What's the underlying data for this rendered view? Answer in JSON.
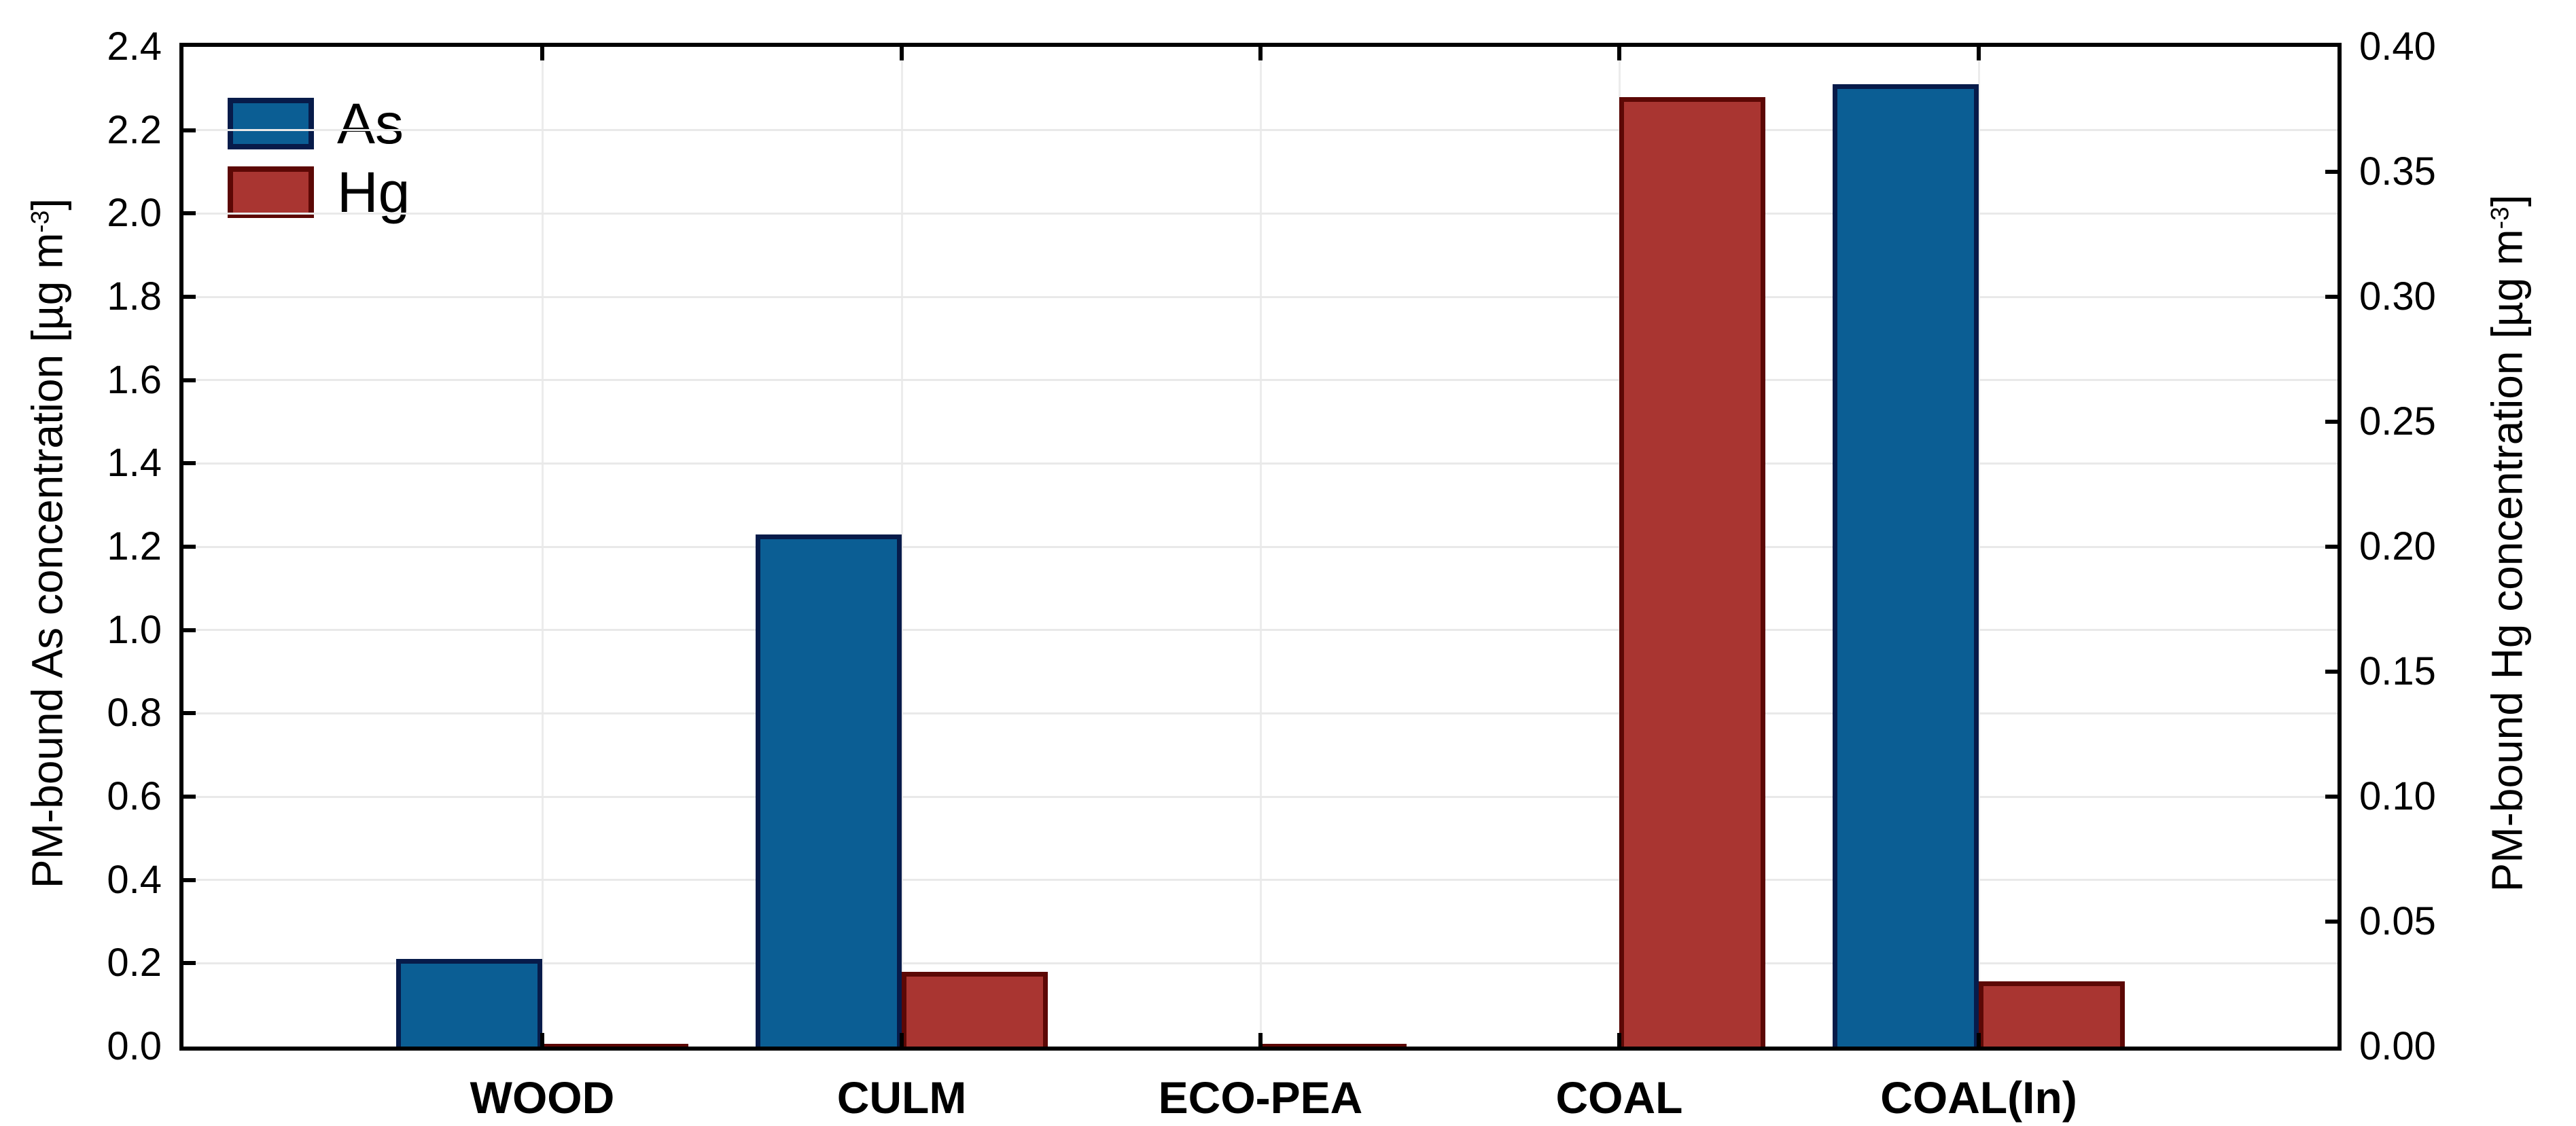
{
  "chart_data": {
    "type": "bar",
    "categories": [
      "WOOD",
      "CULM",
      "ECO-PEA",
      "COAL",
      "COAL(In)"
    ],
    "series": [
      {
        "name": "As",
        "axis": "left",
        "values": [
          0.21,
          1.23,
          0,
          0,
          2.31
        ],
        "fill_color": "#0b5e94",
        "border_color": "#071b4a"
      },
      {
        "name": "Hg",
        "axis": "right",
        "values": [
          0.001,
          0.03,
          0.001,
          0.38,
          0.026
        ],
        "fill_color": "#a93531",
        "border_color": "#5c0805"
      }
    ],
    "left_axis": {
      "title_prefix": "PM-bound As concentration [µg m",
      "title_sup": "-3",
      "title_suffix": "]",
      "min": 0,
      "max": 2.4,
      "step": 0.2,
      "decimals": 1
    },
    "right_axis": {
      "title_prefix": "PM-bound Hg concentration [µg m",
      "title_sup": "-3",
      "title_suffix": "]",
      "min": 0,
      "max": 0.4,
      "step": 0.05,
      "decimals": 2
    },
    "legend": {
      "position": "top-left",
      "entries": [
        "As",
        "Hg"
      ]
    },
    "grid": {
      "horizontal_gridlines": true,
      "vertical_gridlines_at_category_centers": true,
      "h_color": "#e9e9e9",
      "v_color": "#ececec"
    },
    "axis_color": "#000000",
    "background_color": "#ffffff"
  }
}
